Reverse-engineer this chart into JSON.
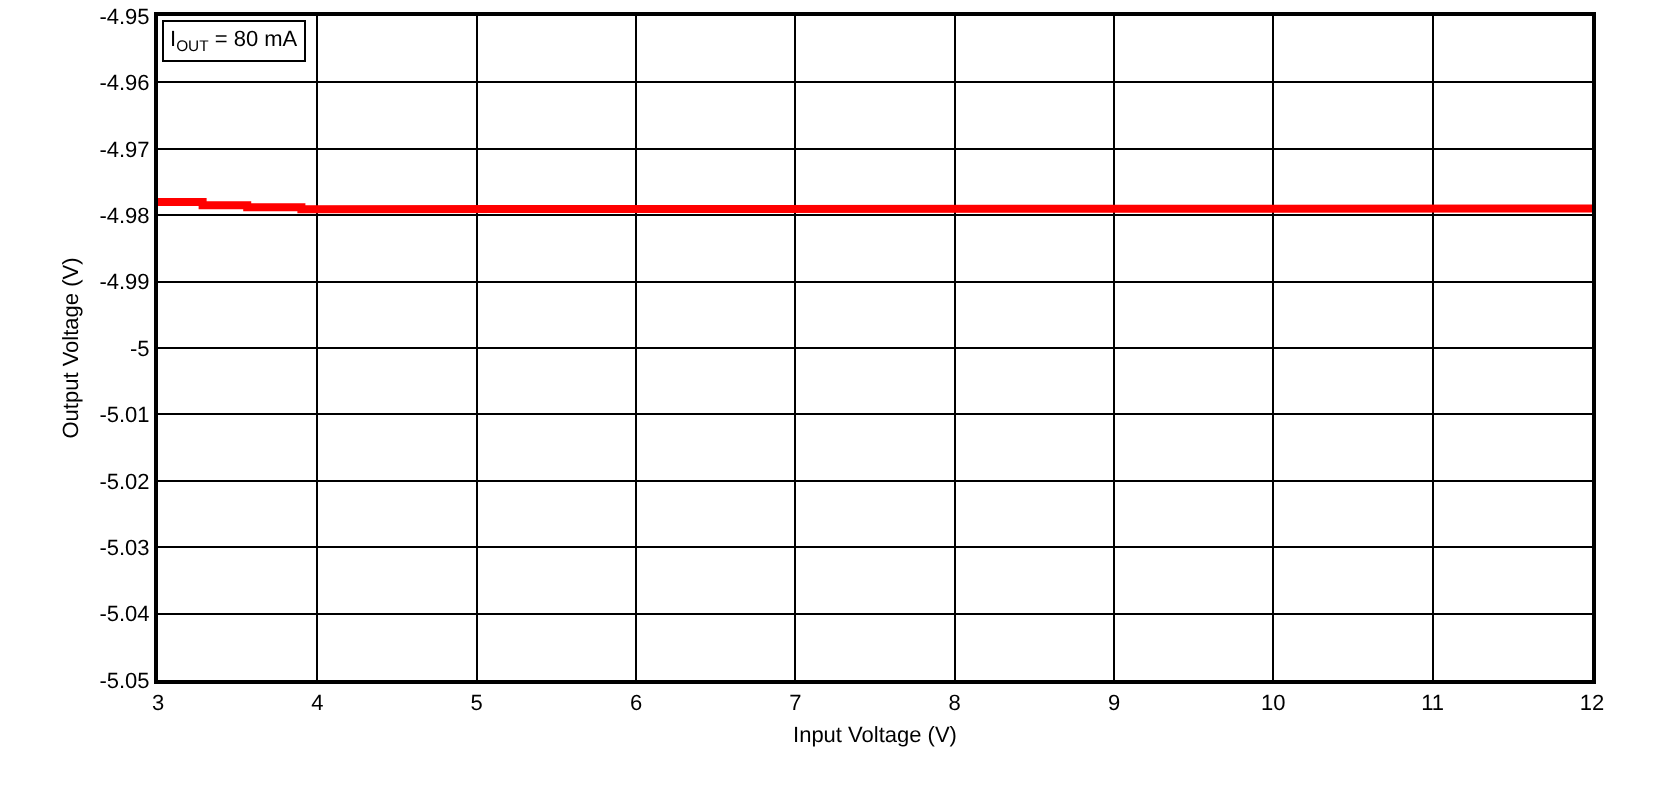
{
  "chart_data": {
    "type": "line",
    "xlabel": "Input Voltage (V)",
    "ylabel": "Output Voltage (V)",
    "annotations": [
      "I$_{OUT}$ = 80 mA"
    ],
    "series": [
      {
        "color": "#ff0000",
        "x": [
          3,
          3.28,
          3.28,
          3.56,
          3.56,
          3.9,
          3.9,
          12
        ],
        "values": [
          -4.978,
          -4.978,
          -4.9785,
          -4.9785,
          -4.9788,
          -4.9788,
          -4.9791,
          -4.979
        ]
      }
    ],
    "xlim": [
      3,
      12
    ],
    "xticks": [
      3,
      4,
      5,
      6,
      7,
      8,
      9,
      10,
      11,
      12
    ],
    "ylim": [
      -5.05,
      -4.95
    ],
    "yticks": [
      -5.05,
      -5.04,
      -5.03,
      -5.02,
      -5.01,
      -5,
      -4.99,
      -4.98,
      -4.97,
      -4.96,
      -4.95
    ],
    "grid": true
  }
}
